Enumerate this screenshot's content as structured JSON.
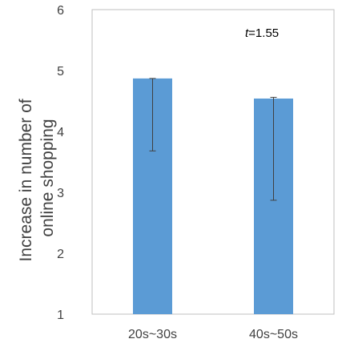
{
  "chart_data": {
    "type": "bar",
    "categories": [
      "20s~30s",
      "40s~50s"
    ],
    "values": [
      4.87,
      4.54
    ],
    "error_low": [
      3.68,
      2.87
    ],
    "error_high": [
      4.87,
      4.56
    ],
    "ylabel_lines": [
      "Increase in number of",
      "online shopping"
    ],
    "ylim": [
      1,
      6
    ],
    "yticks": [
      1,
      2,
      3,
      4,
      5,
      6
    ],
    "grid": false,
    "legend": "none",
    "annotation": {
      "italic": "t",
      "rest": "=1.55"
    },
    "colors": {
      "bar": "#5b9bd5",
      "error_bar": "#404040",
      "frame": "#bfbfbf"
    }
  }
}
